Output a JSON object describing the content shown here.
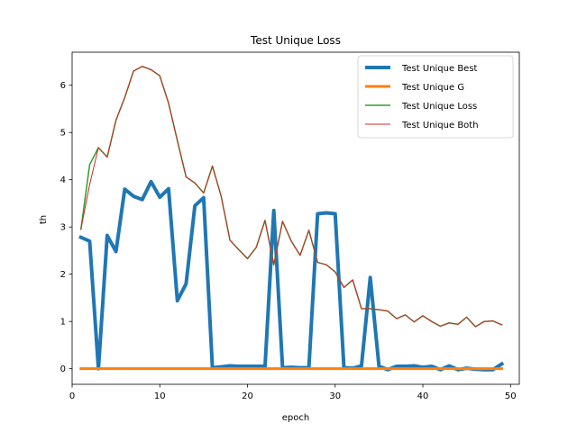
{
  "chart_data": {
    "type": "line",
    "title": "Test Unique Loss",
    "xlabel": "epoch",
    "ylabel": "th",
    "xlim": [
      0,
      51
    ],
    "ylim": [
      -0.33,
      6.7
    ],
    "xticks": [
      0,
      10,
      20,
      30,
      40,
      50
    ],
    "yticks": [
      0,
      1,
      2,
      3,
      4,
      5,
      6
    ],
    "grid": false,
    "legend_position": "top-right",
    "x": [
      1,
      2,
      3,
      4,
      5,
      6,
      7,
      8,
      9,
      10,
      11,
      12,
      13,
      14,
      15,
      16,
      17,
      18,
      19,
      20,
      21,
      22,
      23,
      24,
      25,
      26,
      27,
      28,
      29,
      30,
      31,
      32,
      33,
      34,
      35,
      36,
      37,
      38,
      39,
      40,
      41,
      42,
      43,
      44,
      45,
      46,
      47,
      48,
      49
    ],
    "series": [
      {
        "name": "Test Unique Best",
        "color": "#1f77b4",
        "line_width": 4,
        "values": [
          2.78,
          2.7,
          0.0,
          2.82,
          2.48,
          3.8,
          3.65,
          3.58,
          3.96,
          3.63,
          3.81,
          1.44,
          1.8,
          3.45,
          3.62,
          0.02,
          0.04,
          0.06,
          0.05,
          0.05,
          0.05,
          0.05,
          3.35,
          0.02,
          0.03,
          0.02,
          0.02,
          3.28,
          3.3,
          3.28,
          0.02,
          0.01,
          0.06,
          1.93,
          0.05,
          -0.02,
          0.05,
          0.05,
          0.06,
          0.03,
          0.05,
          -0.02,
          0.06,
          -0.02,
          0.01,
          -0.01,
          -0.02,
          -0.02,
          0.1
        ]
      },
      {
        "name": "Test Unique G",
        "color": "#ff7f0e",
        "line_width": 3,
        "values": [
          0,
          0,
          0,
          0,
          0,
          0,
          0,
          0,
          0,
          0,
          0,
          0,
          0,
          0,
          0,
          0,
          0,
          0,
          0,
          0,
          0,
          0,
          0,
          0,
          0,
          0,
          0,
          0,
          0,
          0,
          0,
          0,
          0,
          0,
          0,
          0,
          0,
          0,
          0,
          0,
          0,
          0,
          0,
          0,
          0,
          0,
          0,
          0,
          0
        ]
      },
      {
        "name": "Test Unique Loss",
        "color": "#2ca02c",
        "line_width": 1.5,
        "values": [
          2.95,
          4.32,
          4.68,
          4.48,
          5.26,
          5.74,
          6.3,
          6.4,
          6.33,
          6.2,
          5.62,
          4.83,
          4.06,
          3.93,
          3.72,
          4.29,
          3.65,
          2.72,
          2.52,
          2.33,
          2.57,
          3.14,
          2.2,
          3.12,
          2.7,
          2.4,
          2.93,
          2.25,
          2.2,
          2.05,
          1.72,
          1.88,
          1.27,
          1.27,
          1.25,
          1.22,
          1.06,
          1.14,
          0.99,
          1.12,
          1.0,
          0.9,
          0.97,
          0.94,
          1.09,
          0.89,
          1.0,
          1.01,
          0.93
        ]
      },
      {
        "name": "Test Unique Both",
        "color": "#d62728",
        "line_width": 1,
        "values": [
          2.95,
          3.9,
          4.68,
          4.48,
          5.26,
          5.74,
          6.3,
          6.4,
          6.33,
          6.2,
          5.62,
          4.83,
          4.06,
          3.93,
          3.72,
          4.29,
          3.65,
          2.72,
          2.52,
          2.33,
          2.57,
          3.14,
          2.2,
          3.12,
          2.7,
          2.4,
          2.93,
          2.25,
          2.2,
          2.05,
          1.72,
          1.88,
          1.27,
          1.27,
          1.25,
          1.22,
          1.06,
          1.14,
          0.99,
          1.12,
          1.0,
          0.9,
          0.97,
          0.94,
          1.09,
          0.89,
          1.0,
          1.01,
          0.93
        ]
      }
    ]
  }
}
